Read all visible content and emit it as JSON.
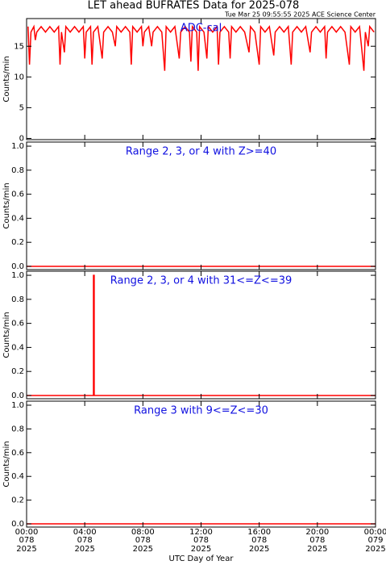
{
  "chart_data": [
    {
      "type": "line",
      "title": "LET ahead BUFRATES Data for 2025-078",
      "subtitle": "Tue Mar 25 09:55:55 2025 ACE Science Center",
      "annotation": "ADC-cal",
      "ylabel": "Counts/min",
      "color": "#ff0000",
      "xlim": [
        0,
        24
      ],
      "xticks": [
        0,
        4,
        8,
        12,
        16,
        20,
        24
      ],
      "ylim": [
        -0.2,
        19.5
      ],
      "yticks": [
        0,
        5,
        10,
        15
      ],
      "x": [
        0.1,
        0.2,
        0.3,
        0.5,
        0.6,
        0.7,
        1.0,
        1.3,
        1.6,
        1.9,
        2.2,
        2.3,
        2.4,
        2.6,
        2.7,
        3.0,
        3.3,
        3.6,
        3.9,
        4.0,
        4.1,
        4.4,
        4.5,
        4.6,
        4.9,
        5.2,
        5.3,
        5.6,
        5.9,
        6.1,
        6.2,
        6.5,
        6.8,
        7.1,
        7.2,
        7.3,
        7.6,
        7.9,
        8.0,
        8.1,
        8.4,
        8.6,
        8.7,
        9.0,
        9.3,
        9.5,
        9.6,
        9.9,
        10.2,
        10.5,
        10.6,
        10.9,
        11.2,
        11.3,
        11.4,
        11.7,
        11.8,
        11.9,
        12.2,
        12.4,
        12.5,
        12.8,
        13.1,
        13.2,
        13.3,
        13.6,
        13.9,
        14.0,
        14.1,
        14.4,
        14.7,
        15.0,
        15.3,
        15.4,
        15.7,
        16.0,
        16.1,
        16.4,
        16.7,
        17.0,
        17.1,
        17.4,
        17.7,
        18.0,
        18.2,
        18.3,
        18.6,
        18.9,
        19.2,
        19.5,
        19.6,
        19.9,
        20.2,
        20.5,
        20.6,
        20.7,
        21.0,
        21.3,
        21.6,
        21.9,
        22.2,
        22.3,
        22.6,
        22.9,
        23.2,
        23.3,
        23.5,
        23.6,
        23.9
      ],
      "values": [
        18.2,
        12,
        17.3,
        18.2,
        16,
        17.3,
        18.2,
        17.3,
        18.2,
        17.3,
        18.2,
        12,
        17.3,
        14,
        18.2,
        17.3,
        18.2,
        17.3,
        18.2,
        13,
        17.3,
        18.2,
        12,
        17.3,
        18.2,
        13,
        17.3,
        18.2,
        17.3,
        15,
        18.2,
        17.3,
        18.2,
        17.3,
        12,
        18.2,
        17.3,
        18.2,
        15,
        17.3,
        18.2,
        15,
        17.3,
        18.2,
        17.3,
        11,
        18.2,
        17.3,
        18.2,
        13,
        17.3,
        18.2,
        17.3,
        12.5,
        18.2,
        17.3,
        11,
        18.2,
        17.3,
        13,
        18.2,
        17.3,
        18.2,
        12,
        17.3,
        18.2,
        17.3,
        13,
        18.2,
        17.3,
        18.2,
        17.3,
        14,
        18.2,
        17.3,
        12,
        18.2,
        17.3,
        18.2,
        13.5,
        17.3,
        18.2,
        17.3,
        18.2,
        12,
        17.3,
        18.2,
        17.3,
        18.2,
        14,
        17.3,
        18.2,
        17.3,
        18.2,
        13,
        17.3,
        18.2,
        17.3,
        18.2,
        17.3,
        12,
        18.2,
        17.3,
        18.2,
        11,
        17.3,
        15,
        18.2,
        17.3
      ]
    },
    {
      "type": "line",
      "annotation": "Range 2, 3, or 4 with Z>=40",
      "ylabel": "Counts/min",
      "color": "#ff0000",
      "xlim": [
        0,
        24
      ],
      "xticks": [
        0,
        4,
        8,
        12,
        16,
        20,
        24
      ],
      "ylim": [
        -0.027,
        1.034
      ],
      "yticks": [
        {
          "value": 0,
          "label": "0.0"
        },
        {
          "value": 0.2,
          "label": "0.2"
        },
        {
          "value": 0.4,
          "label": "0.4"
        },
        {
          "value": 0.6,
          "label": "0.6"
        },
        {
          "value": 0.8,
          "label": "0.8"
        },
        {
          "value": 1,
          "label": "1.0"
        }
      ],
      "x": [
        0,
        24
      ],
      "values": [
        0,
        0
      ]
    },
    {
      "type": "line",
      "annotation": "Range 2, 3, or 4 with 31<=Z<=39",
      "ylabel": "Counts/min",
      "color": "#ff0000",
      "xlim": [
        0,
        24
      ],
      "xticks": [
        0,
        4,
        8,
        12,
        16,
        20,
        24
      ],
      "ylim": [
        -0.027,
        1.034
      ],
      "yticks": [
        {
          "value": 0,
          "label": "0.0"
        },
        {
          "value": 0.2,
          "label": "0.2"
        },
        {
          "value": 0.4,
          "label": "0.4"
        },
        {
          "value": 0.6,
          "label": "0.6"
        },
        {
          "value": 0.8,
          "label": "0.8"
        },
        {
          "value": 1,
          "label": "1.0"
        }
      ],
      "x": [
        0,
        4.6,
        4.6,
        4.65,
        4.65,
        24
      ],
      "values": [
        0,
        0,
        1,
        1,
        0,
        0
      ]
    },
    {
      "type": "line",
      "annotation": "Range 3 with 9<=Z<=30",
      "ylabel": "Counts/min",
      "xlabel": "UTC Day of Year",
      "color": "#ff0000",
      "xlim": [
        0,
        24
      ],
      "ylim": [
        -0.027,
        1.034
      ],
      "xticks": [
        {
          "value": 0,
          "label": "00:00"
        },
        {
          "value": 4,
          "label": "04:00"
        },
        {
          "value": 8,
          "label": "08:00"
        },
        {
          "value": 12,
          "label": "12:00"
        },
        {
          "value": 16,
          "label": "16:00"
        },
        {
          "value": 20,
          "label": "20:00"
        },
        {
          "value": 24,
          "label": "00:00"
        }
      ],
      "xtick_days": [
        "078",
        "078",
        "078",
        "078",
        "078",
        "078",
        "079"
      ],
      "xtick_years": [
        "2025",
        "2025",
        "2025",
        "2025",
        "2025",
        "2025",
        "2025"
      ],
      "yticks": [
        {
          "value": 0,
          "label": "0.0"
        },
        {
          "value": 0.2,
          "label": "0.2"
        },
        {
          "value": 0.4,
          "label": "0.4"
        },
        {
          "value": 0.6,
          "label": "0.6"
        },
        {
          "value": 0.8,
          "label": "0.8"
        },
        {
          "value": 1,
          "label": "1.0"
        }
      ],
      "x": [
        0,
        24
      ],
      "values": [
        0,
        0
      ]
    }
  ]
}
